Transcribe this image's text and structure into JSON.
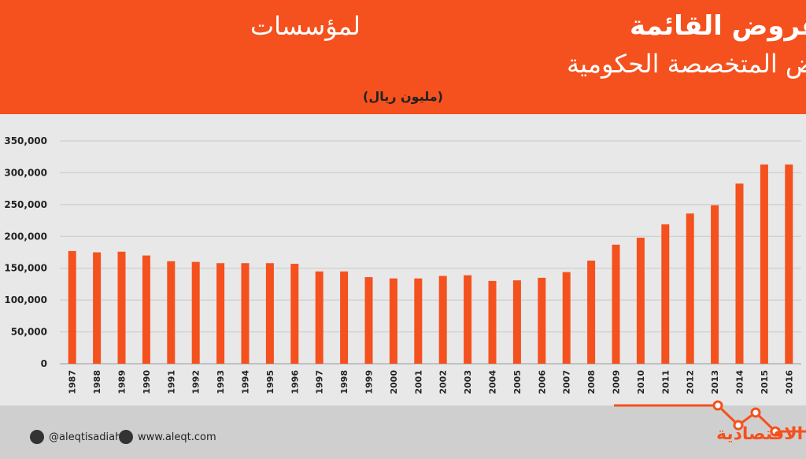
{
  "chart_data": {
    "type": "bar",
    "title_bold": "تطور قيمة القروض القائمة",
    "title_rest": "لمؤسسات",
    "title_line2": "الإقراض المتخصصة الحكومية",
    "subtitle": "(مليون ريال)",
    "categories": [
      "1987",
      "1988",
      "1989",
      "1990",
      "1991",
      "1992",
      "1993",
      "1994",
      "1995",
      "1996",
      "1997",
      "1998",
      "1999",
      "2000",
      "2001",
      "2002",
      "2003",
      "2004",
      "2005",
      "2006",
      "2007",
      "2008",
      "2009",
      "2010",
      "2011",
      "2012",
      "2013",
      "2014",
      "2015",
      "2016"
    ],
    "values": [
      177000,
      175000,
      176000,
      170000,
      161000,
      160000,
      158000,
      158000,
      158000,
      157000,
      145000,
      145000,
      136000,
      134000,
      134000,
      138000,
      139000,
      130000,
      131000,
      135000,
      144000,
      162000,
      187000,
      198000,
      219000,
      236000,
      249000,
      283000,
      313000,
      313000
    ],
    "color": "#f4511e",
    "ylim": [
      0,
      350000
    ],
    "yticks": [
      0,
      {
        "value": 50000,
        "label": "50,000"
      },
      {
        "value": 100000,
        "label": "100,000"
      },
      {
        "value": 150000,
        "label": "150,000"
      },
      {
        "value": 200000,
        "label": "200,000"
      },
      {
        "value": 250000,
        "label": "250,000"
      },
      {
        "value": 300000,
        "label": "300,000"
      },
      {
        "value": 350000,
        "label": "350,000"
      }
    ],
    "grid": true
  },
  "footer": {
    "twitter": "@aleqtisadiah",
    "website": "www.aleqt.com",
    "logo": "الاقتصادية"
  }
}
